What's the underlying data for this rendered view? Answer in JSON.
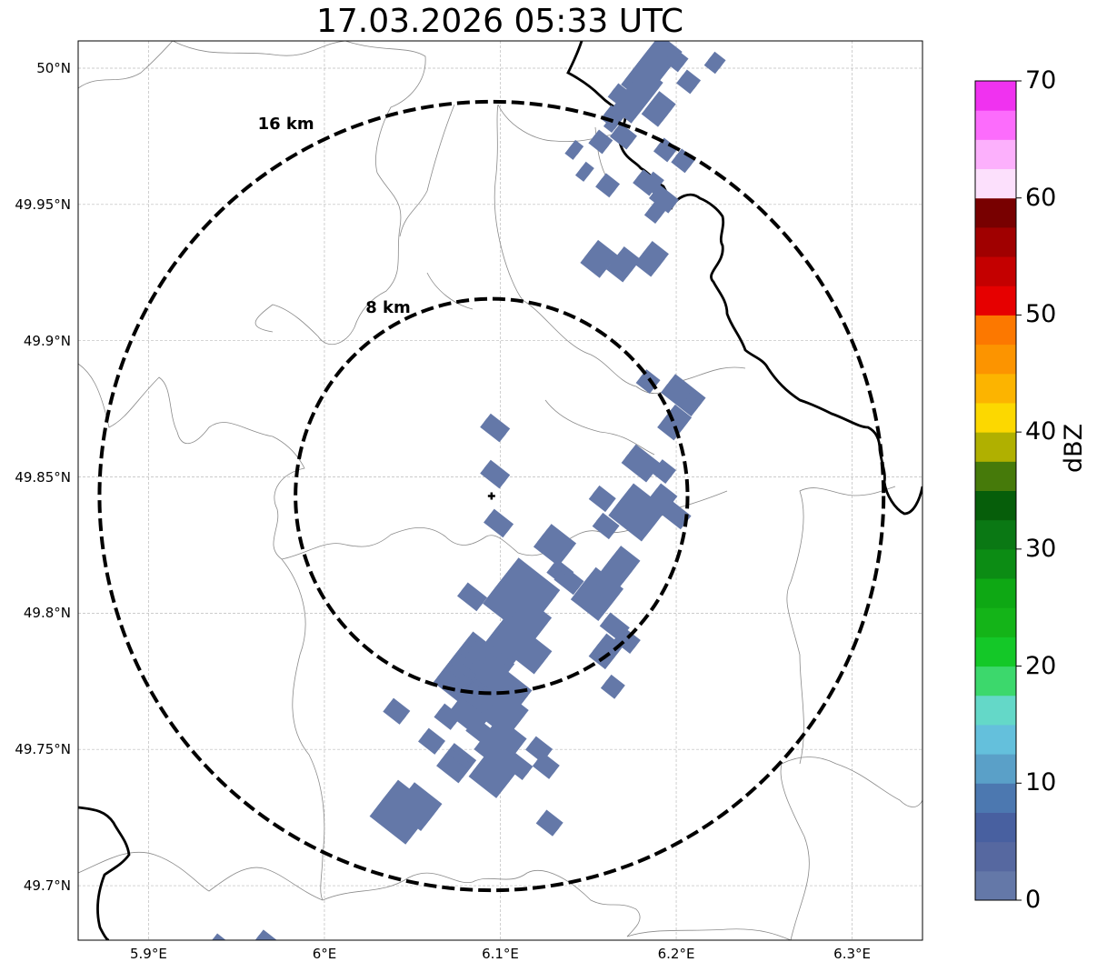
{
  "title": "17.03.2026 05:33 UTC",
  "map": {
    "extent": {
      "lon_min": 5.86,
      "lon_max": 6.34,
      "lat_min": 49.68,
      "lat_max": 50.01
    },
    "radar_site": {
      "lon": 6.095,
      "lat": 49.843,
      "marker": "plus-icon"
    },
    "range_rings": [
      {
        "label": "16 km",
        "radius_km": 16
      },
      {
        "label": "8 km",
        "radius_km": 8
      }
    ],
    "grid": true,
    "lat_ticks": [
      {
        "value": 50.0,
        "label": "50°N"
      },
      {
        "value": 49.95,
        "label": "49.95°N"
      },
      {
        "value": 49.9,
        "label": "49.9°N"
      },
      {
        "value": 49.85,
        "label": "49.85°N"
      },
      {
        "value": 49.8,
        "label": "49.8°N"
      },
      {
        "value": 49.75,
        "label": "49.75°N"
      },
      {
        "value": 49.7,
        "label": "49.7°N"
      }
    ],
    "lon_ticks": [
      {
        "value": 5.9,
        "label": "5.9°E"
      },
      {
        "value": 6.0,
        "label": "6°E"
      },
      {
        "value": 6.1,
        "label": "6.1°E"
      },
      {
        "value": 6.2,
        "label": "6.2°E"
      },
      {
        "value": 6.3,
        "label": "6.3°E"
      }
    ],
    "reflectivity_color": "#6478a8",
    "echoes": [
      [
        6.097,
        49.868,
        0.014,
        0.004,
        2
      ],
      [
        6.097,
        49.851,
        0.014,
        0.004,
        2
      ],
      [
        6.099,
        49.833,
        0.014,
        0.004,
        2
      ],
      [
        6.084,
        49.806,
        0.014,
        0.004,
        2
      ],
      [
        6.112,
        49.806,
        0.03,
        0.012,
        5
      ],
      [
        6.115,
        49.796,
        0.018,
        0.008,
        4
      ],
      [
        6.105,
        49.79,
        0.02,
        0.008,
        4
      ],
      [
        6.118,
        49.785,
        0.016,
        0.006,
        3
      ],
      [
        6.085,
        49.778,
        0.03,
        0.012,
        6
      ],
      [
        6.097,
        49.77,
        0.03,
        0.01,
        5
      ],
      [
        6.075,
        49.776,
        0.016,
        0.006,
        3
      ],
      [
        6.085,
        49.765,
        0.02,
        0.008,
        4
      ],
      [
        6.103,
        49.763,
        0.018,
        0.008,
        3
      ],
      [
        6.07,
        49.762,
        0.012,
        0.004,
        2
      ],
      [
        6.1,
        49.752,
        0.02,
        0.008,
        4
      ],
      [
        6.097,
        49.742,
        0.02,
        0.008,
        4
      ],
      [
        6.088,
        49.757,
        0.012,
        0.004,
        2
      ],
      [
        6.075,
        49.745,
        0.016,
        0.006,
        3
      ],
      [
        6.061,
        49.753,
        0.012,
        0.004,
        2
      ],
      [
        6.11,
        49.744,
        0.014,
        0.004,
        2
      ],
      [
        6.044,
        49.727,
        0.026,
        0.01,
        4
      ],
      [
        6.053,
        49.729,
        0.02,
        0.008,
        3
      ],
      [
        6.041,
        49.764,
        0.012,
        0.004,
        2
      ],
      [
        6.131,
        49.825,
        0.018,
        0.006,
        3
      ],
      [
        6.134,
        49.815,
        0.012,
        0.004,
        2
      ],
      [
        6.139,
        49.812,
        0.014,
        0.004,
        2
      ],
      [
        6.155,
        49.807,
        0.02,
        0.008,
        4
      ],
      [
        6.165,
        49.795,
        0.014,
        0.004,
        2
      ],
      [
        6.16,
        49.786,
        0.012,
        0.006,
        3
      ],
      [
        6.168,
        49.817,
        0.014,
        0.008,
        3
      ],
      [
        6.178,
        49.837,
        0.024,
        0.008,
        4
      ],
      [
        6.192,
        49.842,
        0.012,
        0.006,
        2
      ],
      [
        6.2,
        49.836,
        0.014,
        0.004,
        2
      ],
      [
        6.158,
        49.842,
        0.012,
        0.004,
        2
      ],
      [
        6.16,
        49.832,
        0.012,
        0.004,
        2
      ],
      [
        6.18,
        49.855,
        0.018,
        0.004,
        3
      ],
      [
        6.193,
        49.852,
        0.01,
        0.004,
        2
      ],
      [
        6.172,
        49.79,
        0.012,
        0.004,
        2
      ],
      [
        6.164,
        49.773,
        0.01,
        0.004,
        2
      ],
      [
        6.122,
        49.75,
        0.012,
        0.004,
        2
      ],
      [
        6.126,
        49.744,
        0.012,
        0.004,
        2
      ],
      [
        6.128,
        49.723,
        0.012,
        0.004,
        2
      ],
      [
        6.156,
        49.93,
        0.014,
        0.006,
        3
      ],
      [
        6.17,
        49.928,
        0.012,
        0.006,
        3
      ],
      [
        6.186,
        49.93,
        0.012,
        0.006,
        3
      ],
      [
        6.188,
        49.947,
        0.008,
        0.004,
        2
      ],
      [
        6.204,
        49.88,
        0.022,
        0.004,
        3
      ],
      [
        6.199,
        49.87,
        0.012,
        0.006,
        3
      ],
      [
        6.184,
        49.885,
        0.01,
        0.004,
        2
      ],
      [
        6.186,
        50.0,
        0.016,
        0.014,
        5
      ],
      [
        6.178,
        49.99,
        0.014,
        0.012,
        4
      ],
      [
        6.19,
        49.985,
        0.012,
        0.006,
        3
      ],
      [
        6.2,
        50.003,
        0.01,
        0.004,
        2
      ],
      [
        6.222,
        50.002,
        0.008,
        0.004,
        2
      ],
      [
        6.207,
        49.995,
        0.01,
        0.004,
        2
      ],
      [
        6.168,
        49.99,
        0.01,
        0.004,
        2
      ],
      [
        6.164,
        49.982,
        0.01,
        0.004,
        2
      ],
      [
        6.17,
        49.975,
        0.012,
        0.004,
        2
      ],
      [
        6.194,
        49.97,
        0.01,
        0.004,
        2
      ],
      [
        6.204,
        49.966,
        0.01,
        0.004,
        2
      ],
      [
        6.183,
        49.958,
        0.012,
        0.004,
        2
      ],
      [
        6.193,
        49.952,
        0.014,
        0.004,
        2
      ],
      [
        6.161,
        49.957,
        0.01,
        0.004,
        2
      ],
      [
        6.157,
        49.973,
        0.01,
        0.004,
        2
      ],
      [
        6.142,
        49.97,
        0.006,
        0.004,
        2
      ],
      [
        6.148,
        49.962,
        0.006,
        0.004,
        2
      ],
      [
        6.164,
        49.98,
        0.006,
        0.004,
        2
      ],
      [
        6.187,
        49.958,
        0.008,
        0.004,
        2
      ],
      [
        5.94,
        49.678,
        0.01,
        0.004,
        2
      ],
      [
        5.967,
        49.679,
        0.012,
        0.004,
        2
      ]
    ]
  },
  "colorbar": {
    "label": "dBZ",
    "min": 0,
    "max": 70,
    "ticks": [
      "0",
      "10",
      "20",
      "30",
      "40",
      "50",
      "60",
      "70"
    ],
    "colors": [
      "#6478a8",
      "#5668a0",
      "#4860a0",
      "#4c78b0",
      "#5aa0c8",
      "#64c0dc",
      "#64d8c8",
      "#3cd86c",
      "#14c828",
      "#14b418",
      "#0ea814",
      "#0c8c14",
      "#0a7814",
      "#065e0a",
      "#467a0a",
      "#b0b000",
      "#fcd800",
      "#fcb400",
      "#fc9400",
      "#fc7800",
      "#e60000",
      "#c40000",
      "#a00000",
      "#780000",
      "#fce0fc",
      "#fcb0fc",
      "#fc6cfc",
      "#f032f0"
    ]
  }
}
